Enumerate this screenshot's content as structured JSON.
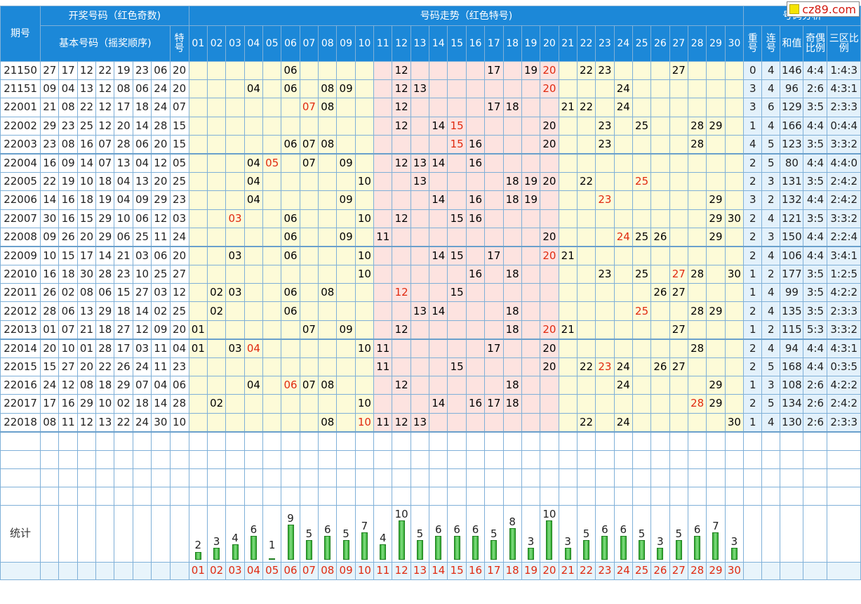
{
  "header": {
    "issue": "期号",
    "group_draw": "开奖号码（红色奇数)",
    "basic": "基本号码（摇奖顺序)",
    "special": "特号",
    "trend": "号码走势（红色特号)",
    "analysis": "号码分析",
    "repeat": "重号",
    "consec": "连号",
    "sum": "和值",
    "odd_even": "奇偶比例",
    "three_zone": "三区比例"
  },
  "logo": "cz89.com",
  "numbers": [
    "01",
    "02",
    "03",
    "04",
    "05",
    "06",
    "07",
    "08",
    "09",
    "10",
    "11",
    "12",
    "13",
    "14",
    "15",
    "16",
    "17",
    "18",
    "19",
    "20",
    "21",
    "22",
    "23",
    "24",
    "25",
    "26",
    "27",
    "28",
    "29",
    "30"
  ],
  "pink_columns": [
    "11",
    "12",
    "13",
    "14",
    "15",
    "16",
    "17",
    "18",
    "19",
    "20"
  ],
  "highlight_color": "#e02a10",
  "draws": [
    {
      "issue": "21150",
      "basic": [
        "27",
        "17",
        "12",
        "22",
        "19",
        "23",
        "06"
      ],
      "special": "20",
      "repeat": "0",
      "consec": "4",
      "sum": "146",
      "odd_even": "4:4",
      "three_zone": "1:4:3"
    },
    {
      "issue": "21151",
      "basic": [
        "09",
        "04",
        "13",
        "12",
        "08",
        "06",
        "24"
      ],
      "special": "20",
      "repeat": "3",
      "consec": "4",
      "sum": "96",
      "odd_even": "2:6",
      "three_zone": "4:3:1"
    },
    {
      "issue": "22001",
      "basic": [
        "21",
        "08",
        "22",
        "12",
        "17",
        "18",
        "24"
      ],
      "special": "07",
      "repeat": "3",
      "consec": "6",
      "sum": "129",
      "odd_even": "3:5",
      "three_zone": "2:3:3"
    },
    {
      "issue": "22002",
      "basic": [
        "29",
        "23",
        "25",
        "12",
        "20",
        "14",
        "28"
      ],
      "special": "15",
      "repeat": "1",
      "consec": "4",
      "sum": "166",
      "odd_even": "4:4",
      "three_zone": "0:4:4"
    },
    {
      "issue": "22003",
      "basic": [
        "23",
        "08",
        "16",
        "07",
        "28",
        "06",
        "20"
      ],
      "special": "15",
      "repeat": "4",
      "consec": "5",
      "sum": "123",
      "odd_even": "3:5",
      "three_zone": "3:3:2"
    },
    {
      "issue": "22004",
      "basic": [
        "16",
        "09",
        "14",
        "07",
        "13",
        "04",
        "12"
      ],
      "special": "05",
      "repeat": "2",
      "consec": "5",
      "sum": "80",
      "odd_even": "4:4",
      "three_zone": "4:4:0"
    },
    {
      "issue": "22005",
      "basic": [
        "22",
        "19",
        "10",
        "18",
        "04",
        "13",
        "20"
      ],
      "special": "25",
      "repeat": "2",
      "consec": "3",
      "sum": "131",
      "odd_even": "3:5",
      "three_zone": "2:4:2"
    },
    {
      "issue": "22006",
      "basic": [
        "14",
        "16",
        "18",
        "19",
        "04",
        "09",
        "29"
      ],
      "special": "23",
      "repeat": "3",
      "consec": "2",
      "sum": "132",
      "odd_even": "4:4",
      "three_zone": "2:4:2"
    },
    {
      "issue": "22007",
      "basic": [
        "30",
        "16",
        "15",
        "29",
        "10",
        "06",
        "12"
      ],
      "special": "03",
      "repeat": "2",
      "consec": "4",
      "sum": "121",
      "odd_even": "3:5",
      "three_zone": "3:3:2"
    },
    {
      "issue": "22008",
      "basic": [
        "09",
        "26",
        "20",
        "29",
        "06",
        "25",
        "11"
      ],
      "special": "24",
      "repeat": "2",
      "consec": "3",
      "sum": "150",
      "odd_even": "4:4",
      "three_zone": "2:2:4"
    },
    {
      "issue": "22009",
      "basic": [
        "10",
        "15",
        "17",
        "14",
        "21",
        "03",
        "06"
      ],
      "special": "20",
      "repeat": "2",
      "consec": "4",
      "sum": "106",
      "odd_even": "4:4",
      "three_zone": "3:4:1"
    },
    {
      "issue": "22010",
      "basic": [
        "16",
        "18",
        "30",
        "28",
        "23",
        "10",
        "25"
      ],
      "special": "27",
      "repeat": "1",
      "consec": "2",
      "sum": "177",
      "odd_even": "3:5",
      "three_zone": "1:2:5"
    },
    {
      "issue": "22011",
      "basic": [
        "26",
        "02",
        "08",
        "06",
        "15",
        "27",
        "03"
      ],
      "special": "12",
      "repeat": "1",
      "consec": "4",
      "sum": "99",
      "odd_even": "3:5",
      "three_zone": "4:2:2"
    },
    {
      "issue": "22012",
      "basic": [
        "28",
        "06",
        "13",
        "29",
        "18",
        "14",
        "02"
      ],
      "special": "25",
      "repeat": "2",
      "consec": "4",
      "sum": "135",
      "odd_even": "3:5",
      "three_zone": "2:3:3"
    },
    {
      "issue": "22013",
      "basic": [
        "01",
        "07",
        "21",
        "18",
        "27",
        "12",
        "09"
      ],
      "special": "20",
      "repeat": "1",
      "consec": "2",
      "sum": "115",
      "odd_even": "5:3",
      "three_zone": "3:3:2"
    },
    {
      "issue": "22014",
      "basic": [
        "20",
        "10",
        "01",
        "28",
        "17",
        "03",
        "11"
      ],
      "special": "04",
      "repeat": "2",
      "consec": "4",
      "sum": "94",
      "odd_even": "4:4",
      "three_zone": "4:3:1"
    },
    {
      "issue": "22015",
      "basic": [
        "15",
        "27",
        "20",
        "22",
        "26",
        "24",
        "11"
      ],
      "special": "23",
      "repeat": "2",
      "consec": "5",
      "sum": "168",
      "odd_even": "4:4",
      "three_zone": "0:3:5"
    },
    {
      "issue": "22016",
      "basic": [
        "24",
        "12",
        "08",
        "18",
        "29",
        "07",
        "04"
      ],
      "special": "06",
      "repeat": "1",
      "consec": "3",
      "sum": "108",
      "odd_even": "2:6",
      "three_zone": "4:2:2"
    },
    {
      "issue": "22017",
      "basic": [
        "17",
        "16",
        "29",
        "10",
        "02",
        "18",
        "14"
      ],
      "special": "28",
      "repeat": "2",
      "consec": "5",
      "sum": "134",
      "odd_even": "2:6",
      "three_zone": "2:4:2"
    },
    {
      "issue": "22018",
      "basic": [
        "08",
        "11",
        "12",
        "13",
        "22",
        "24",
        "30"
      ],
      "special": "10",
      "repeat": "1",
      "consec": "4",
      "sum": "130",
      "odd_even": "2:6",
      "three_zone": "2:3:3"
    }
  ],
  "stats_label": "统计",
  "chart_data": {
    "type": "bar",
    "title": "统计",
    "categories": [
      "01",
      "02",
      "03",
      "04",
      "05",
      "06",
      "07",
      "08",
      "09",
      "10",
      "11",
      "12",
      "13",
      "14",
      "15",
      "16",
      "17",
      "18",
      "19",
      "20",
      "21",
      "22",
      "23",
      "24",
      "25",
      "26",
      "27",
      "28",
      "29",
      "30"
    ],
    "values": [
      2,
      3,
      4,
      6,
      1,
      9,
      5,
      6,
      5,
      7,
      4,
      10,
      5,
      6,
      6,
      6,
      5,
      8,
      3,
      10,
      3,
      5,
      6,
      6,
      5,
      3,
      5,
      6,
      7,
      3
    ],
    "ylim": [
      0,
      10
    ]
  }
}
